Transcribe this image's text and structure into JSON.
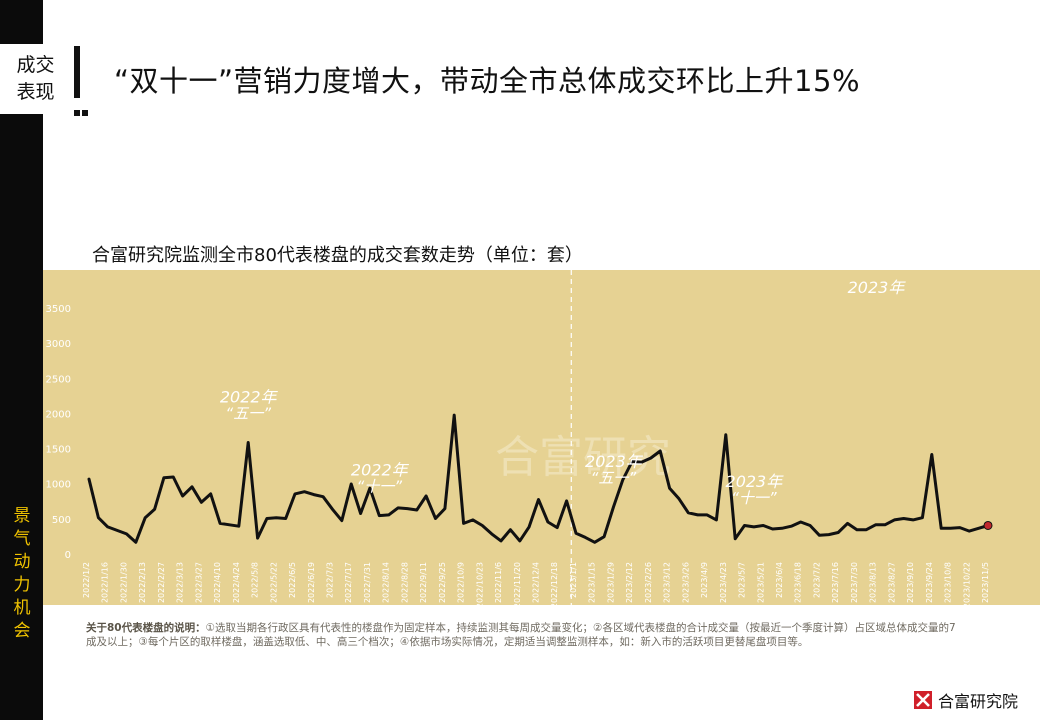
{
  "section_tag": "成交表现",
  "page_title": "“双十一”营销力度增大，带动全市总体成交环比上升15%",
  "sidebar_words": "景气 动力 机会",
  "chart_title": "合富研究院监测全市80代表楼盘的成交套数走势（单位：套）",
  "watermark": "合富研究",
  "year_label": "2023年",
  "annotations": [
    {
      "line1": "2022年",
      "line2": "“五一”",
      "index": 17
    },
    {
      "line1": "2022年",
      "line2": "“十一”",
      "index": 31
    },
    {
      "line1": "2023年",
      "line2": "“五一”",
      "index": 56
    },
    {
      "line1": "2023年",
      "line2": "“十一”",
      "index": 71
    }
  ],
  "note_label": "关于80代表楼盘的说明：",
  "note_text": "①选取当期各行政区具有代表性的楼盘作为固定样本，持续监测其每周成交量变化；②各区域代表楼盘的合计成交量（按最近一个季度计算）占区域总体成交量的7成及以上；③每个片区的取样楼盘，涵盖选取低、中、高三个档次；④依据市场实际情况，定期适当调整监测样本，如：新入市的活跃项目更替尾盘项目等。",
  "brand_name": "合富研究院",
  "colors": {
    "plot_bg": "#e6d293",
    "line": "#111111",
    "last_point": "#c0282e",
    "sidebar_accent": "#f0c300",
    "brand_red": "#d0202a"
  },
  "chart_data": {
    "type": "line",
    "title": "合富研究院监测全市80代表楼盘的成交套数走势（单位：套）",
    "ylim": [
      0,
      3500
    ],
    "yticks": [
      0,
      500,
      1000,
      1500,
      2000,
      2500,
      3000,
      3500
    ],
    "grid": false,
    "x_tick_labels": [
      "2022/1/2",
      "2022/1/16",
      "2022/1/30",
      "2022/2/13",
      "2022/2/27",
      "2022/3/13",
      "2022/3/27",
      "2022/4/10",
      "2022/4/24",
      "2022/5/8",
      "2022/5/22",
      "2022/6/5",
      "2022/6/19",
      "2022/7/3",
      "2022/7/17",
      "2022/7/31",
      "2022/8/14",
      "2022/8/28",
      "2022/9/11",
      "2022/9/25",
      "2022/10/9",
      "2022/10/23",
      "2022/11/6",
      "2022/11/20",
      "2022/12/4",
      "2022/12/18",
      "2023/1/1",
      "2023/1/15",
      "2023/1/29",
      "2023/2/12",
      "2023/2/26",
      "2023/3/12",
      "2023/3/26",
      "2023/4/9",
      "2023/4/23",
      "2023/5/7",
      "2023/5/21",
      "2023/6/4",
      "2023/6/18",
      "2023/7/2",
      "2023/7/16",
      "2023/7/30",
      "2023/8/13",
      "2023/8/27",
      "2023/9/10",
      "2023/9/24",
      "2023/10/8",
      "2023/10/22",
      "2023/11/5"
    ],
    "year_divider_after": "2022/12/25",
    "series": [
      {
        "values": [
          1080,
          530,
          400,
          350,
          300,
          180,
          530,
          650,
          1100,
          1110,
          840,
          970,
          750,
          870,
          450,
          430,
          410,
          1600,
          240,
          520,
          530,
          520,
          870,
          900,
          860,
          830,
          650,
          490,
          1010,
          590,
          950,
          560,
          570,
          670,
          660,
          640,
          840,
          520,
          660,
          1990,
          450,
          500,
          420,
          300,
          200,
          360,
          200,
          400,
          790,
          470,
          390,
          770,
          310,
          250,
          180,
          260,
          680,
          1070,
          1330,
          1320,
          1380,
          1480,
          950,
          800,
          600,
          570,
          570,
          500,
          1710,
          230,
          420,
          400,
          420,
          370,
          380,
          410,
          470,
          420,
          280,
          290,
          320,
          450,
          360,
          360,
          430,
          430,
          500,
          520,
          500,
          530,
          1430,
          380,
          380,
          390,
          340,
          380,
          420
        ]
      }
    ]
  }
}
